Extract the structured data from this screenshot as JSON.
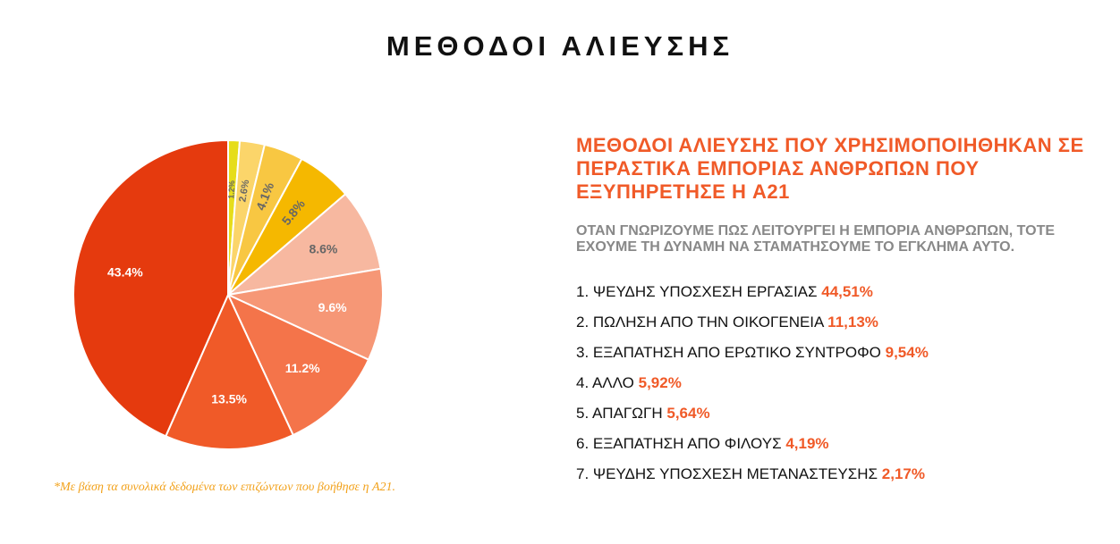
{
  "title": "ΜΕΘΟΔΟΙ ΑΛΙΕΥΣΗΣ",
  "chart_data": {
    "type": "pie",
    "slices": [
      {
        "label": "1.2%",
        "value": 1.2,
        "color": "#e6dd1a",
        "label_color": "#666666",
        "rotate": true
      },
      {
        "label": "2.6%",
        "value": 2.6,
        "color": "#fbd56a",
        "label_color": "#666666",
        "rotate": true
      },
      {
        "label": "4.1%",
        "value": 4.1,
        "color": "#f8c742",
        "label_color": "#666666",
        "rotate": true
      },
      {
        "label": "5.8%",
        "value": 5.8,
        "color": "#f5b800",
        "label_color": "#666666",
        "rotate": true
      },
      {
        "label": "8.6%",
        "value": 8.6,
        "color": "#f7b8a0",
        "label_color": "#666666",
        "rotate": false
      },
      {
        "label": "9.6%",
        "value": 9.6,
        "color": "#f69776",
        "label_color": "#ffffff",
        "rotate": false
      },
      {
        "label": "11.2%",
        "value": 11.2,
        "color": "#f4744a",
        "label_color": "#ffffff",
        "rotate": false
      },
      {
        "label": "13.5%",
        "value": 13.5,
        "color": "#f05a28",
        "label_color": "#ffffff",
        "rotate": false
      },
      {
        "label": "43.4%",
        "value": 43.4,
        "color": "#e53a0e",
        "label_color": "#ffffff",
        "rotate": false
      }
    ]
  },
  "footnote": "*Με βάση τα συνολικά δεδομένα των επιζώντων που βοήθησε η A21.",
  "subtitle": "ΜΕΘΟΔΟΙ ΑΛΙΕΥΣΗΣ ΠΟΥ ΧΡΗΣΙΜΟΠΟΙΗΘΗΚΑΝ ΣΕ ΠΕΡΑΣΤΙΚΑ ΕΜΠΟΡΙΑΣ ΑΝΘΡΩΠΩΝ ΠΟΥ ΕΞΥΠΗΡΕΤΗΣΕ Η A21",
  "tagline": "ΟΤΑΝ ΓΝΩΡΙΖΟΥΜΕ ΠΩΣ ΛΕΙΤΟΥΡΓΕΙ Η ΕΜΠΟΡΙΑ ΑΝΘΡΩΠΩΝ, ΤΟΤΕ ΕΧΟΥΜΕ ΤΗ ΔΥΝΑΜΗ ΝΑ ΣΤΑΜΑΤΗΣΟΥΜΕ ΤΟ ΕΓΚΛΗΜΑ ΑΥΤΟ.",
  "methods": [
    {
      "text": "1. ΨΕΥΔΗΣ ΥΠΟΣΧΕΣΗ ΕΡΓΑΣΙΑΣ",
      "pct": "44,51%"
    },
    {
      "text": "2. ΠΩΛΗΣΗ ΑΠΟ ΤΗΝ ΟΙΚΟΓΕΝΕΙΑ",
      "pct": "11,13%"
    },
    {
      "text": "3. ΕΞΑΠΑΤΗΣΗ ΑΠΟ ΕΡΩΤΙΚΟ ΣΥΝΤΡΟΦΟ",
      "pct": "9,54%"
    },
    {
      "text": "4. ΑΛΛΟ",
      "pct": "5,92%"
    },
    {
      "text": "5. ΑΠΑΓΩΓΗ",
      "pct": "5,64%"
    },
    {
      "text": "6. ΕΞΑΠΑΤΗΣΗ ΑΠΟ ΦΙΛΟΥΣ",
      "pct": "4,19%"
    },
    {
      "text": "7. ΨΕΥΔΗΣ ΥΠΟΣΧΕΣΗ ΜΕΤΑΝΑΣΤΕΥΣΗΣ",
      "pct": "2,17%"
    }
  ]
}
